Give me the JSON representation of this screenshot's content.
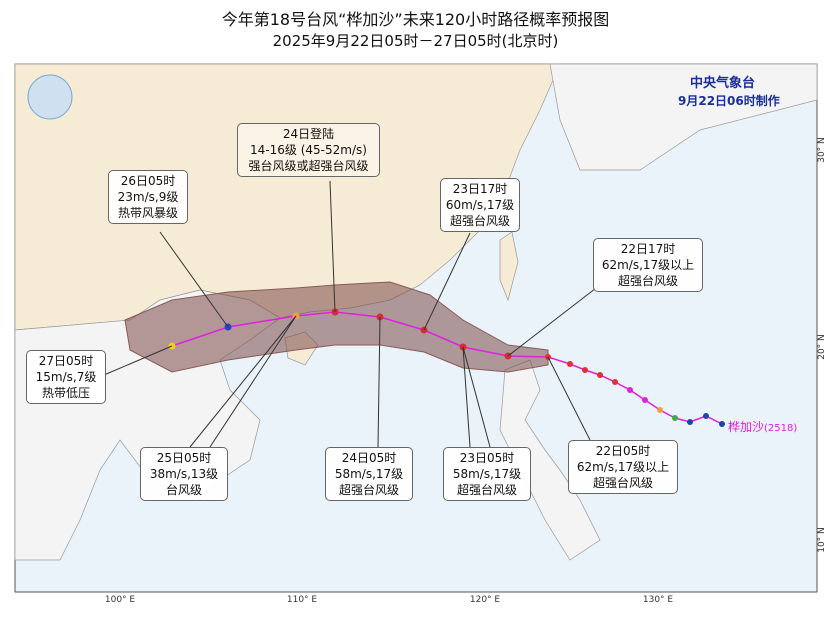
{
  "header": {
    "title": "今年第18号台风“桦加沙”未来120小时路径概率预报图",
    "subtitle": "2025年9月22日05时－27日05时(北京时)"
  },
  "agency": {
    "name": "中央气象台",
    "issued": "9月22日06时制作"
  },
  "typhoon": {
    "name": "桦加沙",
    "code": "(2518)"
  },
  "annotations": [
    {
      "lines": [
        "24日登陆",
        "14-16级 (45-52m/s)",
        "强台风级或超强台风级"
      ]
    },
    {
      "lines": [
        "26日05时",
        "23m/s,9级",
        "热带风暴级"
      ]
    },
    {
      "lines": [
        "23日17时",
        "60m/s,17级",
        "超强台风级"
      ]
    },
    {
      "lines": [
        "22日17时",
        "62m/s,17级以上",
        "超强台风级"
      ]
    },
    {
      "lines": [
        "27日05时",
        "15m/s,7级",
        "热带低压"
      ]
    },
    {
      "lines": [
        "25日05时",
        "38m/s,13级",
        "台风级"
      ]
    },
    {
      "lines": [
        "24日05时",
        "58m/s,17级",
        "超强台风级"
      ]
    },
    {
      "lines": [
        "23日05时",
        "58m/s,17级",
        "超强台风级"
      ]
    },
    {
      "lines": [
        "22日05时",
        "62m/s,17级以上",
        "超强台风级"
      ]
    }
  ],
  "lon_labels": [
    "100° E",
    "110° E",
    "120° E",
    "130° E"
  ],
  "lat_labels": [
    "30° N",
    "20° N",
    "10° N"
  ]
}
